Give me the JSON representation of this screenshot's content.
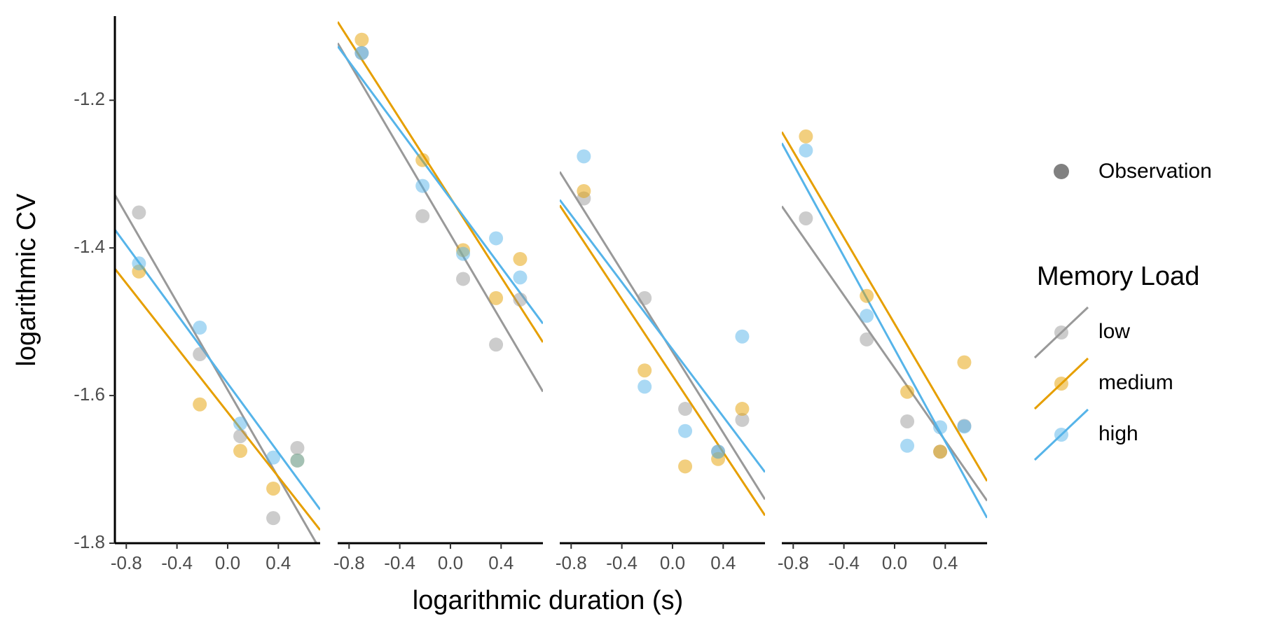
{
  "y_label": "logarithmic CV",
  "x_label": "logarithmic duration (s)",
  "legend": {
    "observation": "Observation",
    "title": "Memory Load"
  },
  "chart_data": [
    {
      "type": "scatter",
      "x": [
        -0.7,
        -0.22,
        0.1,
        0.36,
        0.55
      ],
      "xlim": [
        -0.89,
        0.73
      ],
      "ylim": [
        -1.8,
        -1.086
      ],
      "xticks": [
        -0.8,
        -0.4,
        {
          "value": 0,
          "label": "0.0"
        },
        0.4
      ],
      "yticks": [
        -1.2,
        -1.4,
        -1.6,
        -1.8
      ],
      "series": [
        {
          "name": "low",
          "color": "#999999",
          "values": [
            -1.352,
            -1.544,
            -1.655,
            -1.766,
            -1.671
          ]
        },
        {
          "name": "medium",
          "color": "#E69F00",
          "values": [
            -1.432,
            -1.612,
            -1.675,
            -1.726,
            -1.688
          ]
        },
        {
          "name": "high",
          "color": "#56B4E9",
          "values": [
            -1.421,
            -1.508,
            -1.638,
            -1.684,
            -1.688
          ]
        }
      ]
    },
    {
      "type": "scatter",
      "x": [
        -0.7,
        -0.22,
        0.1,
        0.36,
        0.55
      ],
      "xlim": [
        -0.89,
        0.73
      ],
      "ylim": [
        -1.8,
        -1.086
      ],
      "xticks": [
        -0.8,
        -0.4,
        {
          "value": 0,
          "label": "0.0"
        },
        0.4
      ],
      "series": [
        {
          "name": "low",
          "color": "#999999",
          "values": [
            -1.136,
            -1.357,
            -1.442,
            -1.531,
            -1.47
          ]
        },
        {
          "name": "medium",
          "color": "#E69F00",
          "values": [
            -1.118,
            -1.281,
            -1.403,
            -1.468,
            -1.415
          ]
        },
        {
          "name": "high",
          "color": "#56B4E9",
          "values": [
            -1.136,
            -1.316,
            -1.408,
            -1.387,
            -1.44
          ]
        }
      ]
    },
    {
      "type": "scatter",
      "x": [
        -0.7,
        -0.22,
        0.1,
        0.36,
        0.55
      ],
      "xlim": [
        -0.89,
        0.73
      ],
      "ylim": [
        -1.8,
        -1.086
      ],
      "xticks": [
        -0.8,
        -0.4,
        {
          "value": 0,
          "label": "0.0"
        },
        0.4
      ],
      "series": [
        {
          "name": "low",
          "color": "#999999",
          "values": [
            -1.333,
            -1.468,
            -1.618,
            -1.676,
            -1.633
          ]
        },
        {
          "name": "medium",
          "color": "#E69F00",
          "values": [
            -1.323,
            -1.566,
            -1.696,
            -1.686,
            -1.618
          ]
        },
        {
          "name": "high",
          "color": "#56B4E9",
          "values": [
            -1.276,
            -1.588,
            -1.648,
            -1.676,
            -1.52
          ]
        }
      ]
    },
    {
      "type": "scatter",
      "x": [
        -0.7,
        -0.22,
        0.1,
        0.36,
        0.55
      ],
      "xlim": [
        -0.89,
        0.73
      ],
      "ylim": [
        -1.8,
        -1.086
      ],
      "xticks": [
        -0.8,
        -0.4,
        {
          "value": 0,
          "label": "0.0"
        },
        0.4
      ],
      "series": [
        {
          "name": "low",
          "color": "#999999",
          "values": [
            -1.36,
            -1.524,
            -1.635,
            -1.676,
            -1.641
          ]
        },
        {
          "name": "medium",
          "color": "#E69F00",
          "values": [
            -1.249,
            -1.465,
            -1.595,
            -1.676,
            -1.555
          ]
        },
        {
          "name": "high",
          "color": "#56B4E9",
          "values": [
            -1.268,
            -1.492,
            -1.668,
            -1.643,
            -1.642
          ]
        }
      ]
    }
  ]
}
